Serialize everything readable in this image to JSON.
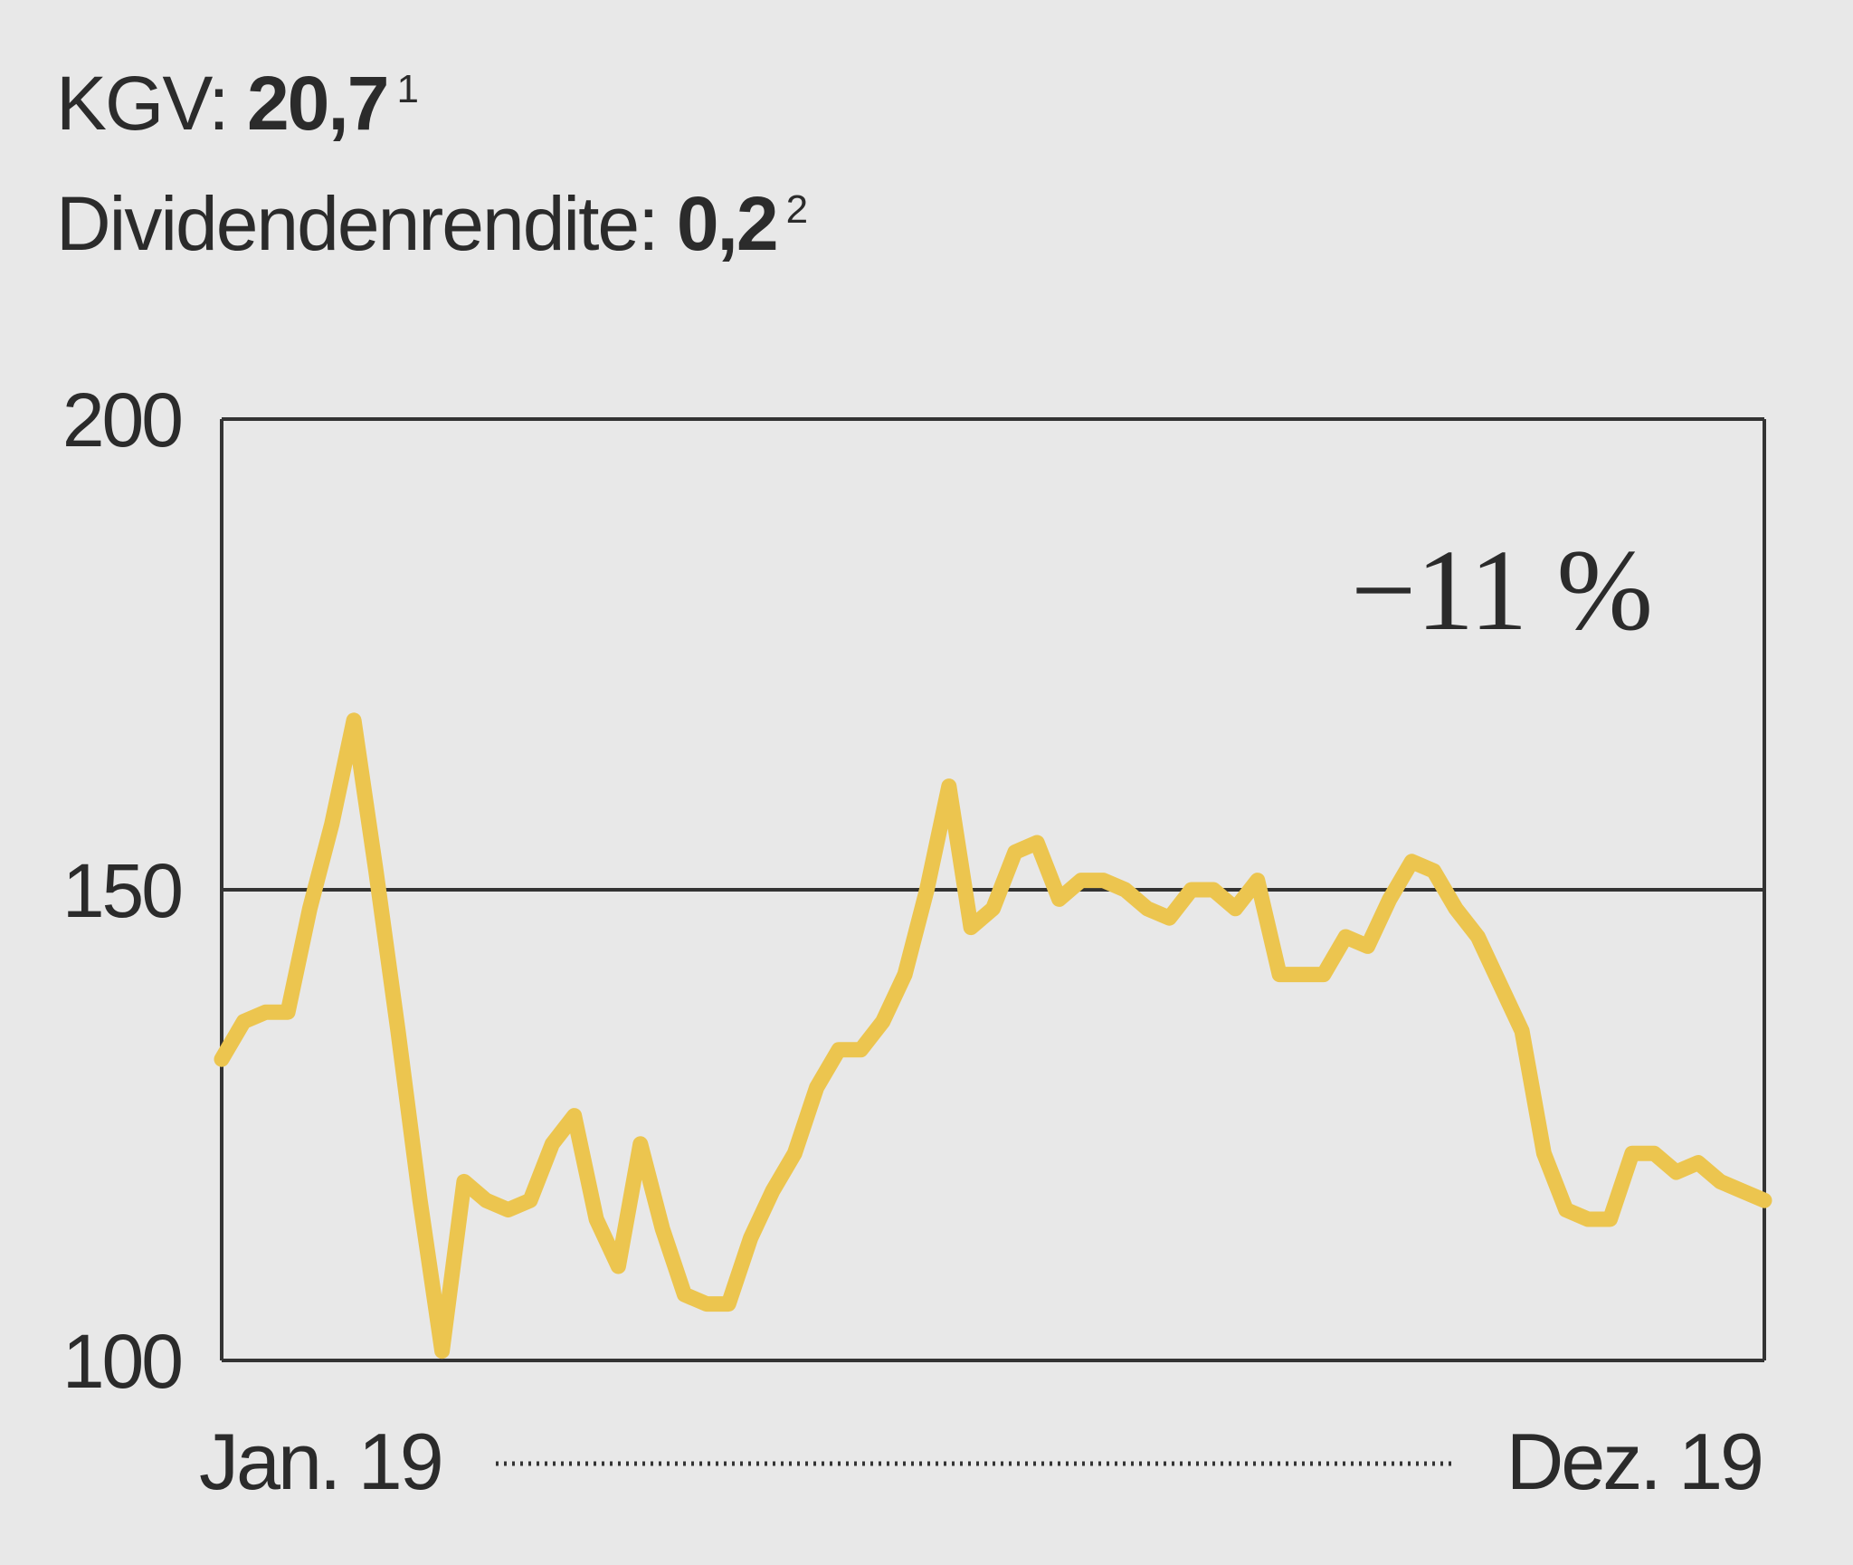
{
  "stats": {
    "kgv_label": "KGV: ",
    "kgv_value": "20,7",
    "kgv_footnote": "1",
    "dividend_label": "Dividendenrendite: ",
    "dividend_value": "0,2",
    "dividend_footnote": "2"
  },
  "chart_data": {
    "type": "line",
    "title": "",
    "xlabel": "",
    "ylabel": "",
    "ylim": [
      100,
      200
    ],
    "yticks": [
      200,
      150,
      100
    ],
    "ytick_labels": [
      "200",
      "150",
      "100"
    ],
    "x_start_label": "Jan. 19",
    "x_end_label": "Dez. 19",
    "annotation": "−11 %",
    "grid": "horizontal line at 150",
    "colors": {
      "line": "#ecc54f",
      "axis": "#333333"
    },
    "series": [
      {
        "values": [
          132,
          136,
          137,
          137,
          148,
          157,
          168,
          152,
          135,
          117,
          101,
          119,
          117,
          116,
          117,
          123,
          126,
          115,
          110,
          123,
          114,
          107,
          106,
          106,
          113,
          118,
          122,
          129,
          133,
          133,
          136,
          141,
          150,
          161,
          146,
          148,
          154,
          155,
          149,
          151,
          151,
          150,
          148,
          147,
          150,
          150,
          148,
          151,
          141,
          141,
          141,
          145,
          144,
          149,
          153,
          152,
          148,
          145,
          140,
          135,
          122,
          116,
          115,
          115,
          122,
          122,
          120,
          121,
          119,
          118,
          117
        ]
      }
    ]
  }
}
